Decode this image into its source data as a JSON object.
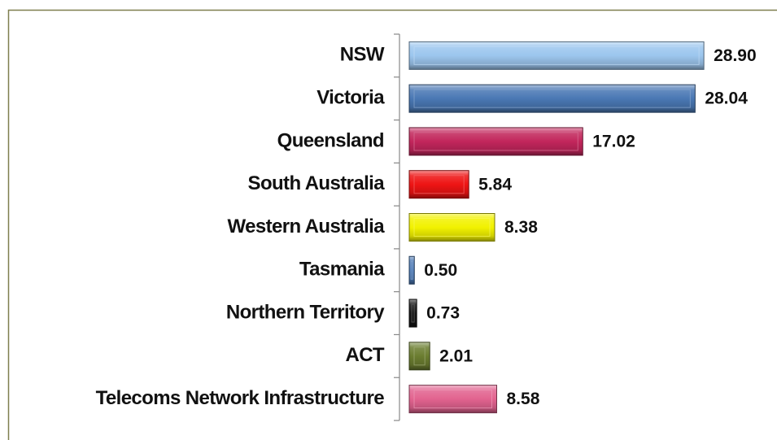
{
  "chart_data": {
    "type": "bar",
    "orientation": "horizontal",
    "categories": [
      "NSW",
      "Victoria",
      "Queensland",
      "South Australia",
      "Western Australia",
      "Tasmania",
      "Northern Territory",
      "ACT",
      "Telecoms Network Infrastructure"
    ],
    "values": [
      28.9,
      28.04,
      17.02,
      5.84,
      8.38,
      0.5,
      0.73,
      2.01,
      8.58
    ],
    "value_labels": [
      "28.90",
      "28.04",
      "17.02",
      "5.84",
      "8.38",
      "0.50",
      "0.73",
      "2.01",
      "8.58"
    ],
    "colors": [
      "#9cc6ee",
      "#4a78b4",
      "#c2265c",
      "#ee1414",
      "#f2f200",
      "#4a78b4",
      "#141414",
      "#6b7d30",
      "#e2638f"
    ]
  }
}
